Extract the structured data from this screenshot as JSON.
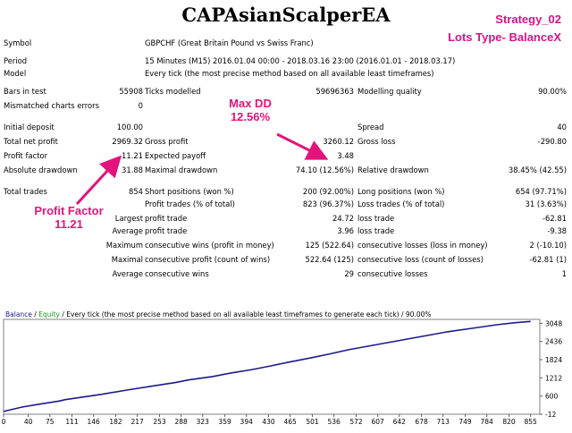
{
  "title": "CAPAsianScalperEA",
  "strategy_label": "Strategy_02",
  "lots_label": "Lots Type- BalanceX",
  "report": {
    "symbol_label": "Symbol",
    "symbol_value": "GBPCHF (Great Britain Pound vs Swiss Franc)",
    "period_label": "Period",
    "period_value": "15 Minutes (M15) 2016.01.04 00:00 - 2018.03.16 23:00 (2016.01.01 - 2018.03.17)",
    "model_label": "Model",
    "model_value": "Every tick (the most precise method based on all available least timeframes)",
    "bars_label": "Bars in test",
    "bars_value": "55908",
    "ticks_label": "Ticks modelled",
    "ticks_value": "59696363",
    "quality_label": "Modelling quality",
    "quality_value": "90.00%",
    "mismatch_label": "Mismatched charts errors",
    "mismatch_value": "0",
    "deposit_label": "Initial deposit",
    "deposit_value": "100.00",
    "spread_label": "Spread",
    "spread_value": "40",
    "net_label": "Total net profit",
    "net_value": "2969.32",
    "gross_profit_label": "Gross profit",
    "gross_profit_value": "3260.12",
    "gross_loss_label": "Gross loss",
    "gross_loss_value": "-290.80",
    "pf_label": "Profit factor",
    "pf_value": "11.21",
    "payoff_label": "Expected payoff",
    "payoff_value": "3.48",
    "abs_dd_label": "Absolute drawdown",
    "abs_dd_value": "31.88",
    "max_dd_label": "Maximal drawdown",
    "max_dd_value": "74.10 (12.56%)",
    "rel_dd_label": "Relative drawdown",
    "rel_dd_value": "38.45% (42.55)",
    "trades_label": "Total trades",
    "trades_value": "854",
    "short_label": "Short positions (won %)",
    "short_value": "200 (92.00%)",
    "long_label": "Long positions (won %)",
    "long_value": "654 (97.71%)",
    "profit_trades_label": "Profit trades (% of total)",
    "profit_trades_value": "823 (96.37%)",
    "loss_trades_label": "Loss trades (% of total)",
    "loss_trades_value": "31 (3.63%)",
    "largest_label": "Largest",
    "largest_profit_label": "profit trade",
    "largest_profit_value": "24.72",
    "largest_loss_label": "loss trade",
    "largest_loss_value": "-62.81",
    "average_label": "Average",
    "average_profit_label": "profit trade",
    "average_profit_value": "3.96",
    "average_loss_label": "loss trade",
    "average_loss_value": "-9.38",
    "maximum_label": "Maximum",
    "max_wins_label": "consecutive wins (profit in money)",
    "max_wins_value": "125 (522.64)",
    "max_losses_label": "consecutive losses (loss in money)",
    "max_losses_value": "2 (-10.10)",
    "maximal_label": "Maximal",
    "maximal_profit_label": "consecutive profit (count of wins)",
    "maximal_profit_value": "522.64 (125)",
    "maximal_loss_label": "consecutive loss (count of losses)",
    "maximal_loss_value": "-62.81 (1)",
    "avg2_label": "Average",
    "avg_wins_label": "consecutive wins",
    "avg_wins_value": "29",
    "avg_losses_label": "consecutive losses",
    "avg_losses_value": "1"
  },
  "callouts": {
    "max_dd_title": "Max DD",
    "max_dd_value": "12.56%",
    "pf_title": "Profit Factor",
    "pf_value": "11.21",
    "color": "#e2147b"
  },
  "chart_data": {
    "type": "line",
    "legend_balance": "Balance",
    "legend_sep1": " / ",
    "legend_equity": "Equity",
    "legend_rest": " / Every tick (the most precise method based on all available least timeframes to generate each tick) / 90.00%",
    "series_color": "#1a1a8c",
    "x_ticks": [
      "0",
      "40",
      "75",
      "111",
      "146",
      "182",
      "217",
      "253",
      "288",
      "323",
      "359",
      "394",
      "430",
      "465",
      "501",
      "536",
      "572",
      "607",
      "642",
      "678",
      "713",
      "749",
      "784",
      "820",
      "855"
    ],
    "y_ticks": [
      "3048",
      "2436",
      "1824",
      "1212",
      "600",
      "-12"
    ],
    "xlim": [
      0,
      870
    ],
    "ylim": [
      -12,
      3180
    ],
    "x": [
      0,
      30,
      60,
      90,
      100,
      130,
      160,
      200,
      240,
      280,
      300,
      340,
      370,
      400,
      430,
      460,
      500,
      530,
      560,
      600,
      640,
      680,
      720,
      760,
      800,
      830,
      855
    ],
    "values": [
      80,
      230,
      330,
      430,
      480,
      570,
      660,
      800,
      930,
      1060,
      1140,
      1260,
      1380,
      1480,
      1600,
      1730,
      1890,
      2020,
      2160,
      2310,
      2460,
      2610,
      2760,
      2880,
      3000,
      3070,
      3110
    ]
  }
}
